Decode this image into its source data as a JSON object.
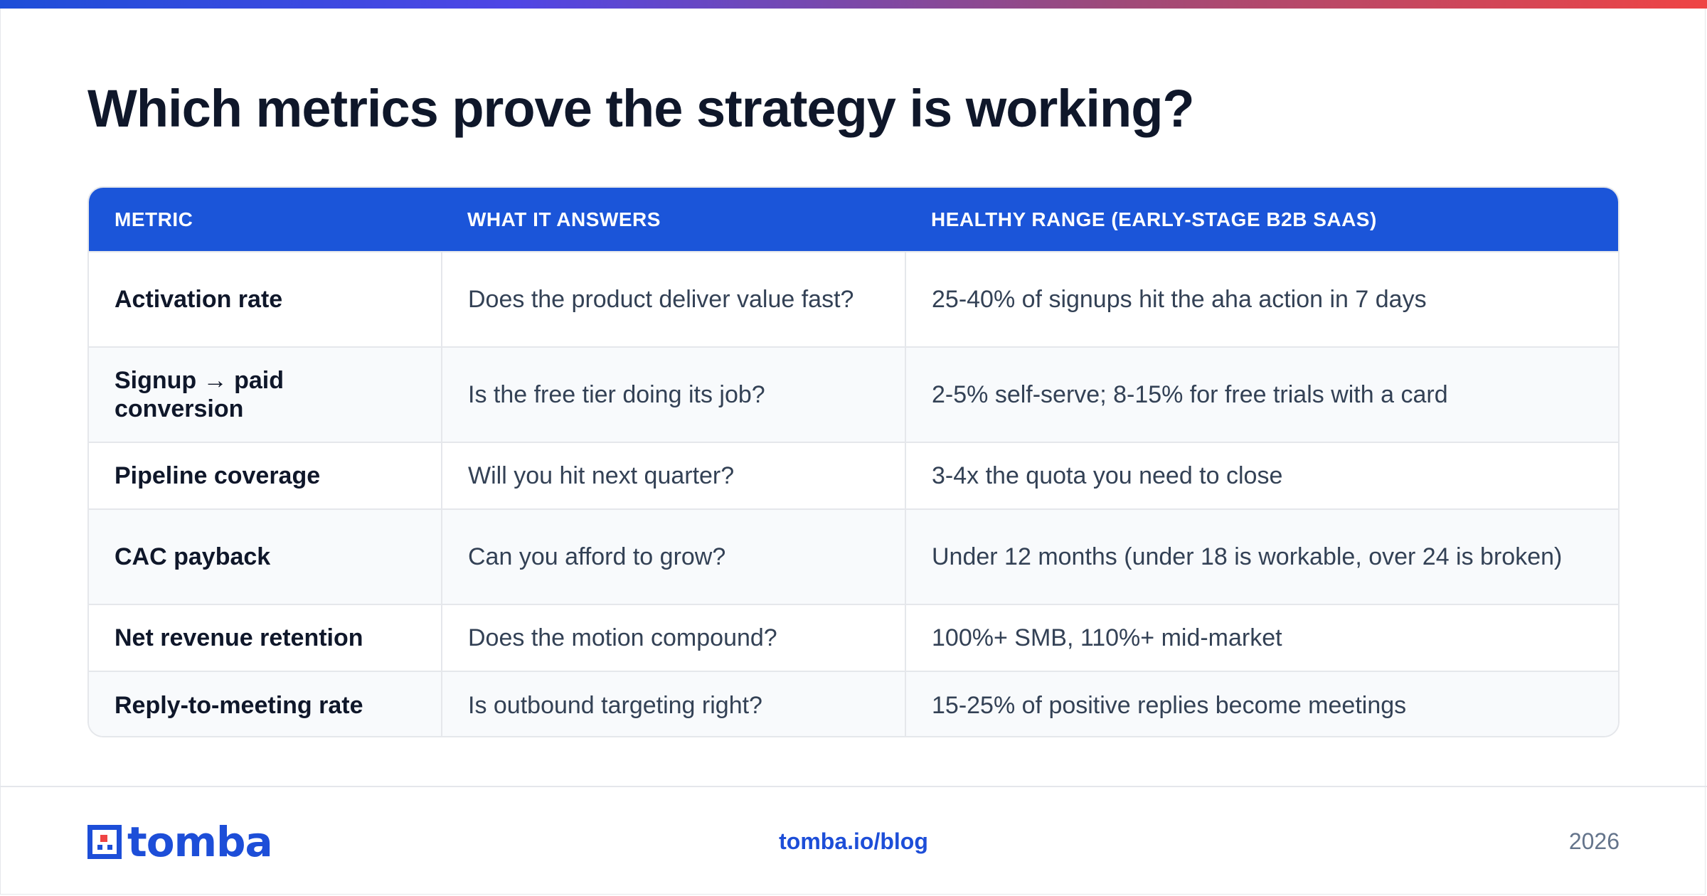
{
  "page": {
    "title": "Which metrics prove the strategy is working?",
    "accent_gradient": [
      "#1d4ed8",
      "#4f46e5",
      "#9d4a7a",
      "#ef4444"
    ]
  },
  "table": {
    "header_color": "#1b55d9",
    "columns": [
      "METRIC",
      "WHAT IT ANSWERS",
      "HEALTHY RANGE (EARLY-STAGE B2B SAAS)"
    ],
    "rows": [
      {
        "metric": "Activation rate",
        "answers": "Does the product deliver value fast?",
        "range": "25-40% of signups hit the aha action in 7 days"
      },
      {
        "metric": "Signup → paid conversion",
        "answers": "Is the free tier doing its job?",
        "range": "2-5% self-serve; 8-15% for free trials with a card"
      },
      {
        "metric": "Pipeline coverage",
        "answers": "Will you hit next quarter?",
        "range": "3-4x the quota you need to close"
      },
      {
        "metric": "CAC payback",
        "answers": "Can you afford to grow?",
        "range": "Under 12 months (under 18 is workable, over 24 is broken)"
      },
      {
        "metric": "Net revenue retention",
        "answers": "Does the motion compound?",
        "range": "100%+ SMB, 110%+ mid-market"
      },
      {
        "metric": "Reply-to-meeting rate",
        "answers": "Is outbound targeting right?",
        "range": "15-25% of positive replies become meetings"
      }
    ]
  },
  "footer": {
    "logo_text": "tomba",
    "logo_icon": "tomba-logo-icon",
    "link": "tomba.io/blog",
    "year": "2026"
  }
}
